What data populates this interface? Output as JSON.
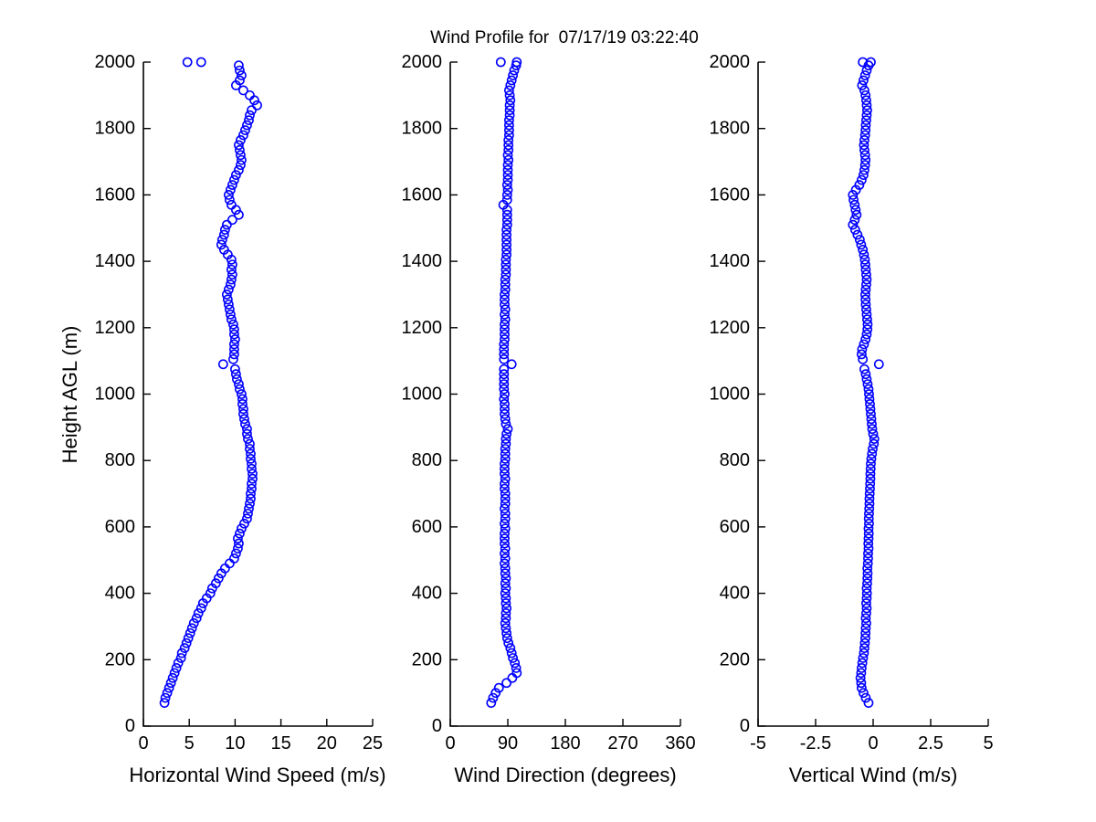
{
  "figure_title": "Wind Profile for  07/17/19 03:22:40",
  "colors": {
    "marker": "#0000ff",
    "axis": "#000000",
    "background": "#ffffff",
    "text": "#000000"
  },
  "chart_data": {
    "type": "scatter",
    "title": "Wind Profile for  07/17/19 03:22:40",
    "marker": "open-circle",
    "legend": "none",
    "grid": false,
    "ylabel": "Height AGL (m)",
    "ylim": [
      0,
      2000
    ],
    "y_ticks": [
      0,
      200,
      400,
      600,
      800,
      1000,
      1200,
      1400,
      1600,
      1800,
      2000
    ],
    "y_tick_labels": [
      "0",
      "200",
      "400",
      "600",
      "800",
      "1000",
      "1200",
      "1400",
      "1600",
      "1800",
      "2000"
    ],
    "heights_m": [
      70,
      85,
      100,
      115,
      130,
      145,
      160,
      175,
      190,
      205,
      220,
      235,
      250,
      265,
      280,
      295,
      310,
      325,
      340,
      355,
      370,
      385,
      400,
      415,
      430,
      445,
      460,
      475,
      490,
      505,
      520,
      535,
      550,
      565,
      580,
      595,
      610,
      625,
      640,
      655,
      670,
      685,
      700,
      715,
      730,
      745,
      760,
      775,
      790,
      805,
      820,
      835,
      850,
      865,
      880,
      895,
      910,
      925,
      940,
      955,
      970,
      985,
      1000,
      1015,
      1030,
      1045,
      1060,
      1075,
      1090,
      1105,
      1120,
      1135,
      1150,
      1165,
      1180,
      1195,
      1210,
      1225,
      1240,
      1255,
      1270,
      1285,
      1300,
      1315,
      1330,
      1345,
      1360,
      1375,
      1390,
      1405,
      1420,
      1435,
      1450,
      1465,
      1480,
      1495,
      1510,
      1525,
      1540,
      1555,
      1570,
      1585,
      1600,
      1615,
      1630,
      1645,
      1660,
      1675,
      1690,
      1705,
      1720,
      1735,
      1750,
      1765,
      1780,
      1795,
      1810,
      1825,
      1840,
      1855,
      1870,
      1885,
      1900,
      1915,
      1930,
      1945,
      1960,
      1975,
      1990,
      2000,
      2000
    ],
    "subplots": [
      {
        "name": "horizontal-wind-speed",
        "xlabel": "Horizontal Wind Speed (m/s)",
        "xlim": [
          0,
          25
        ],
        "x_ticks": [
          0,
          5,
          10,
          15,
          20,
          25
        ],
        "x_tick_labels": [
          "0",
          "5",
          "10",
          "15",
          "20",
          "25"
        ],
        "values": [
          2.3,
          2.4,
          2.6,
          2.8,
          3.0,
          3.2,
          3.4,
          3.6,
          3.8,
          4.1,
          4.2,
          4.5,
          4.7,
          4.9,
          5.1,
          5.3,
          5.5,
          5.8,
          6.0,
          6.3,
          6.5,
          6.9,
          7.3,
          7.5,
          7.9,
          8.2,
          8.5,
          8.9,
          9.4,
          9.9,
          10.1,
          10.3,
          10.4,
          10.3,
          10.5,
          10.7,
          11.0,
          11.3,
          11.4,
          11.5,
          11.6,
          11.7,
          11.7,
          11.8,
          11.8,
          11.9,
          11.9,
          11.8,
          11.8,
          11.7,
          11.7,
          11.6,
          11.6,
          11.4,
          11.3,
          11.3,
          11.1,
          11.0,
          10.9,
          10.9,
          10.8,
          10.8,
          10.7,
          10.5,
          10.4,
          10.2,
          10.1,
          10.0,
          8.7,
          9.8,
          9.9,
          9.9,
          9.9,
          10.0,
          9.9,
          9.9,
          9.8,
          9.6,
          9.5,
          9.4,
          9.3,
          9.2,
          9.1,
          9.3,
          9.5,
          9.6,
          9.7,
          9.6,
          9.7,
          9.6,
          9.2,
          8.8,
          8.5,
          8.6,
          8.8,
          8.9,
          9.1,
          9.7,
          10.4,
          10.1,
          9.6,
          9.4,
          9.3,
          9.5,
          9.7,
          9.9,
          10.1,
          10.4,
          10.6,
          10.7,
          10.6,
          10.5,
          10.4,
          10.6,
          10.9,
          11.1,
          11.3,
          11.5,
          11.6,
          11.8,
          12.4,
          12.1,
          11.6,
          10.9,
          10.1,
          10.5,
          10.7,
          10.5,
          10.4,
          4.8,
          6.3
        ]
      },
      {
        "name": "wind-direction",
        "xlabel": "Wind Direction (degrees)",
        "xlim": [
          0,
          360
        ],
        "x_ticks": [
          0,
          90,
          180,
          270,
          360
        ],
        "x_tick_labels": [
          "0",
          "90",
          "180",
          "270",
          "360"
        ],
        "values": [
          64,
          67,
          71,
          76,
          88,
          97,
          104,
          103,
          101,
          98,
          96,
          94,
          91,
          89,
          88,
          87,
          86,
          87,
          87,
          88,
          87,
          87,
          86,
          87,
          86,
          87,
          86,
          86,
          85,
          86,
          85,
          86,
          85,
          85,
          85,
          86,
          85,
          86,
          86,
          85,
          86,
          86,
          86,
          85,
          85,
          86,
          85,
          85,
          85,
          86,
          86,
          86,
          87,
          87,
          88,
          90,
          87,
          86,
          85,
          85,
          85,
          84,
          85,
          84,
          84,
          84,
          84,
          84,
          96,
          84,
          84,
          84,
          84,
          85,
          85,
          85,
          85,
          86,
          85,
          86,
          85,
          85,
          85,
          86,
          86,
          86,
          87,
          87,
          87,
          87,
          88,
          88,
          88,
          88,
          88,
          88,
          89,
          89,
          89,
          89,
          83,
          89,
          89,
          90,
          89,
          90,
          90,
          90,
          90,
          91,
          90,
          91,
          91,
          91,
          92,
          92,
          92,
          92,
          93,
          93,
          93,
          94,
          93,
          92,
          94,
          96,
          98,
          100,
          103,
          79,
          104
        ]
      },
      {
        "name": "vertical-wind",
        "xlabel": "Vertical Wind (m/s)",
        "xlim": [
          -5,
          5
        ],
        "x_ticks": [
          -5,
          -2.5,
          0,
          2.5,
          5
        ],
        "x_tick_labels": [
          "-5",
          "-2.5",
          "0",
          "2.5",
          "5"
        ],
        "values": [
          -0.2,
          -0.32,
          -0.42,
          -0.5,
          -0.52,
          -0.55,
          -0.52,
          -0.5,
          -0.47,
          -0.44,
          -0.4,
          -0.38,
          -0.36,
          -0.34,
          -0.33,
          -0.32,
          -0.3,
          -0.32,
          -0.3,
          -0.28,
          -0.3,
          -0.28,
          -0.27,
          -0.28,
          -0.26,
          -0.25,
          -0.24,
          -0.25,
          -0.23,
          -0.22,
          -0.22,
          -0.2,
          -0.21,
          -0.2,
          -0.19,
          -0.2,
          -0.18,
          -0.19,
          -0.18,
          -0.17,
          -0.16,
          -0.16,
          -0.15,
          -0.14,
          -0.13,
          -0.12,
          -0.12,
          -0.11,
          -0.1,
          -0.08,
          -0.05,
          -0.02,
          0.03,
          0.05,
          0.0,
          -0.04,
          -0.06,
          -0.08,
          -0.1,
          -0.12,
          -0.14,
          -0.16,
          -0.18,
          -0.2,
          -0.24,
          -0.28,
          -0.32,
          -0.38,
          0.25,
          -0.45,
          -0.5,
          -0.48,
          -0.4,
          -0.33,
          -0.28,
          -0.25,
          -0.24,
          -0.26,
          -0.28,
          -0.3,
          -0.32,
          -0.33,
          -0.34,
          -0.32,
          -0.3,
          -0.28,
          -0.3,
          -0.32,
          -0.34,
          -0.36,
          -0.4,
          -0.45,
          -0.52,
          -0.58,
          -0.68,
          -0.78,
          -0.88,
          -0.8,
          -0.72,
          -0.76,
          -0.8,
          -0.85,
          -0.88,
          -0.75,
          -0.6,
          -0.5,
          -0.42,
          -0.38,
          -0.35,
          -0.33,
          -0.35,
          -0.38,
          -0.4,
          -0.38,
          -0.35,
          -0.33,
          -0.32,
          -0.3,
          -0.28,
          -0.26,
          -0.28,
          -0.3,
          -0.33,
          -0.38,
          -0.48,
          -0.42,
          -0.35,
          -0.28,
          -0.2,
          -0.1,
          -0.45
        ]
      }
    ]
  }
}
